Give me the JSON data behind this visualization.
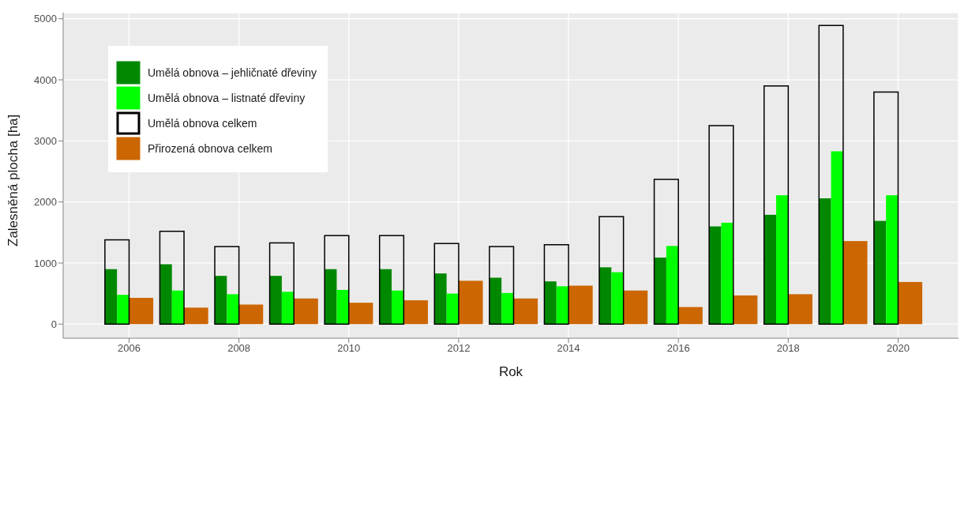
{
  "chart_data": {
    "type": "bar",
    "xlabel": "Rok",
    "ylabel": "Zalesněná plocha [ha]",
    "x": [
      2006,
      2007,
      2008,
      2009,
      2010,
      2011,
      2012,
      2013,
      2014,
      2015,
      2016,
      2017,
      2018,
      2019,
      2020
    ],
    "series": [
      {
        "name": "Umělá obnova – jehličnaté dřeviny",
        "color": "#008800",
        "values": [
          900,
          980,
          790,
          790,
          900,
          900,
          830,
          760,
          700,
          930,
          1090,
          1600,
          1790,
          2060,
          1690
        ]
      },
      {
        "name": "Umělá obnova – listnaté dřeviny",
        "color": "#00ff00",
        "values": [
          480,
          550,
          490,
          530,
          560,
          550,
          500,
          510,
          620,
          850,
          1280,
          1660,
          2110,
          2830,
          2110
        ]
      },
      {
        "name": "Umělá obnova celkem",
        "color": "#000000",
        "values": [
          1380,
          1520,
          1270,
          1330,
          1450,
          1450,
          1320,
          1270,
          1300,
          1760,
          2370,
          3250,
          3900,
          4890,
          3800
        ]
      },
      {
        "name": "Přirozená obnova celkem",
        "color": "#cc6600",
        "values": [
          430,
          270,
          320,
          420,
          350,
          390,
          710,
          420,
          630,
          550,
          280,
          470,
          490,
          1360,
          690
        ]
      }
    ],
    "xlim": [
      2004.8,
      2021.1
    ],
    "xticks": [
      2006,
      2008,
      2010,
      2012,
      2014,
      2016,
      2018,
      2020
    ],
    "ylim": [
      -230,
      5100
    ],
    "yticks": [
      0,
      1000,
      2000,
      3000,
      4000,
      5000
    ],
    "grid": true,
    "legend": "top left"
  }
}
